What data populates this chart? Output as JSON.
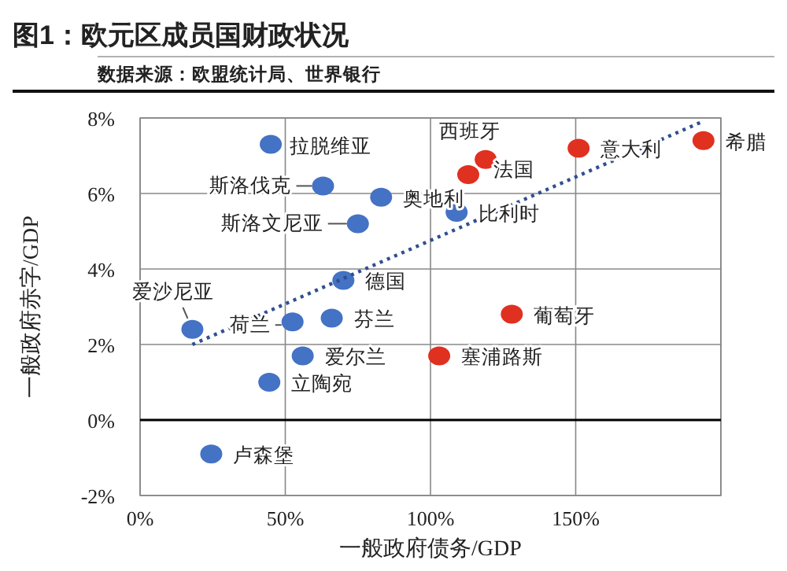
{
  "chart_data": {
    "type": "scatter",
    "title": "图1：欧元区成员国财政状况",
    "subtitle": "数据来源：欧盟统计局、世界银行",
    "xlabel": "一般政府债务/GDP",
    "ylabel": "一般政府赤字/GDP",
    "xlim": [
      0,
      200
    ],
    "ylim": [
      -2,
      8
    ],
    "xticks": [
      {
        "value": 0,
        "label": "0%"
      },
      {
        "value": 50,
        "label": "50%"
      },
      {
        "value": 100,
        "label": "100%"
      },
      {
        "value": 150,
        "label": "150%"
      },
      {
        "value": 200,
        "label": null
      }
    ],
    "yticks": [
      {
        "value": -2,
        "label": "-2%"
      },
      {
        "value": 0,
        "label": "0%"
      },
      {
        "value": 2,
        "label": "2%"
      },
      {
        "value": 4,
        "label": "4%"
      },
      {
        "value": 6,
        "label": "6%"
      },
      {
        "value": 8,
        "label": "8%"
      }
    ],
    "grid": true,
    "marker": "circle",
    "ref_lines": [
      {
        "axis": "y",
        "value": 0,
        "color": "#000000"
      }
    ],
    "series": [
      {
        "color": "#4472c4",
        "x": [
          45,
          63,
          83,
          75,
          70,
          18,
          52.5,
          66,
          109,
          56,
          44.5,
          24.5
        ],
        "values": [
          7.3,
          6.2,
          5.9,
          5.2,
          3.7,
          2.4,
          2.6,
          2.7,
          5.5,
          1.7,
          1.0,
          -0.9
        ]
      },
      {
        "color": "#e03020",
        "x": [
          119,
          113,
          151,
          194,
          128,
          103
        ],
        "values": [
          6.9,
          6.5,
          7.2,
          7.4,
          2.8,
          1.7
        ]
      },
      {
        "type": "line",
        "color": "#2f4f8f",
        "line_style": "dotted",
        "marker": "none",
        "x": [
          18,
          193.5
        ],
        "values": [
          2.0,
          7.9
        ]
      }
    ],
    "annotations": [
      {
        "text": "拉脱维亚",
        "x": 45,
        "y": 7.3
      },
      {
        "text": "斯洛伐克",
        "x": 63,
        "y": 6.2
      },
      {
        "text": "奥地利",
        "x": 83,
        "y": 5.9
      },
      {
        "text": "斯洛文尼亚",
        "x": 75,
        "y": 5.2
      },
      {
        "text": "德国",
        "x": 70,
        "y": 3.7
      },
      {
        "text": "爱沙尼亚",
        "x": 18,
        "y": 2.4
      },
      {
        "text": "荷兰",
        "x": 52.5,
        "y": 2.6
      },
      {
        "text": "芬兰",
        "x": 66,
        "y": 2.7
      },
      {
        "text": "比利时",
        "x": 109,
        "y": 5.5
      },
      {
        "text": "西班牙",
        "x": 119,
        "y": 6.9
      },
      {
        "text": "法国",
        "x": 113,
        "y": 6.5
      },
      {
        "text": "意大利",
        "x": 151,
        "y": 7.2
      },
      {
        "text": "希腊",
        "x": 194,
        "y": 7.4
      },
      {
        "text": "葡萄牙",
        "x": 128,
        "y": 2.8
      },
      {
        "text": "爱尔兰",
        "x": 56,
        "y": 1.7
      },
      {
        "text": "塞浦路斯",
        "x": 103,
        "y": 1.7
      },
      {
        "text": "立陶宛",
        "x": 44.5,
        "y": 1.0
      },
      {
        "text": "卢森堡",
        "x": 24.5,
        "y": -0.9
      }
    ]
  }
}
